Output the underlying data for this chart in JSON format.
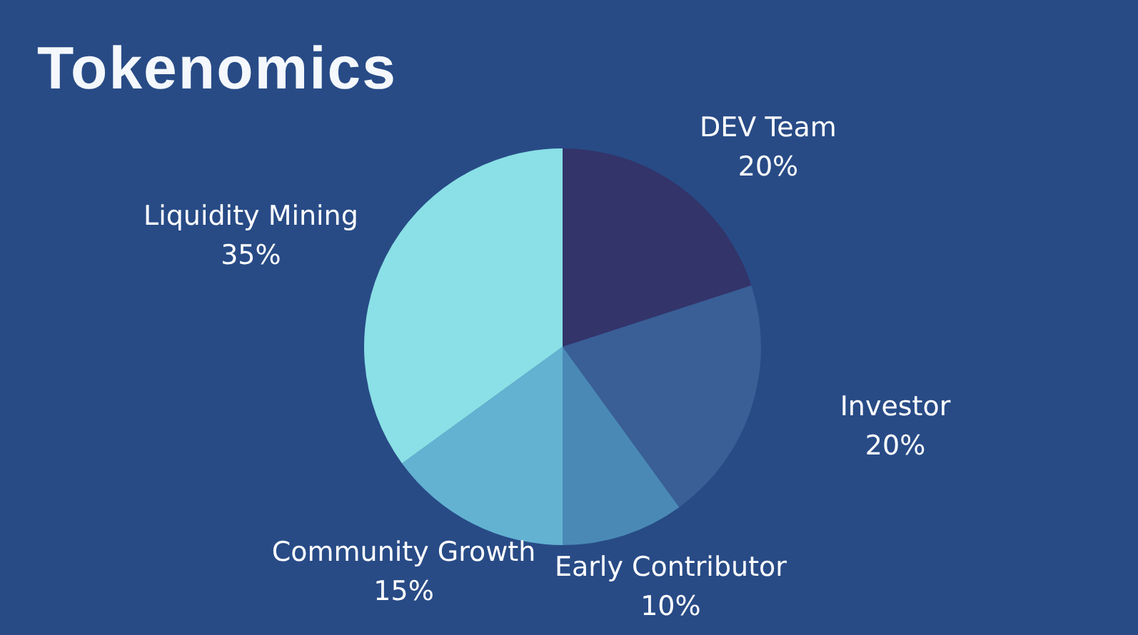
{
  "chart_data": {
    "type": "pie",
    "title": "Tokenomics",
    "categories": [
      "DEV Team",
      "Investor",
      "Early Contributor",
      "Community Growth",
      "Liquidity Mining"
    ],
    "values": [
      20,
      20,
      10,
      15,
      35
    ],
    "colors": [
      "#33346a",
      "#3a5e96",
      "#4a89b6",
      "#63b2d2",
      "#8ae0e6"
    ],
    "value_labels": [
      "20%",
      "20%",
      "10%",
      "15%",
      "35%"
    ]
  }
}
